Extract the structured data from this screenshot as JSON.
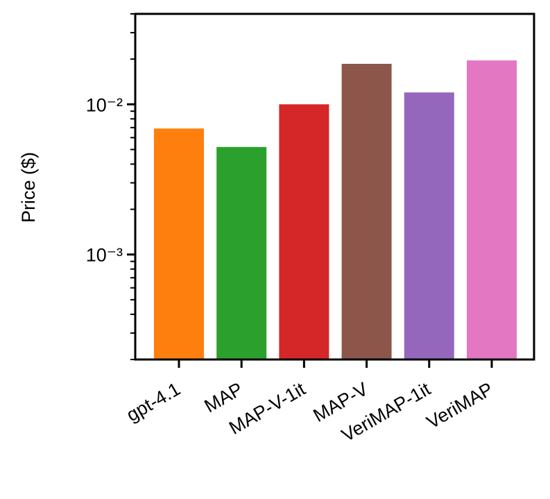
{
  "chart_data": {
    "type": "bar",
    "y_label": "Price ($)",
    "y_scale": "log",
    "categories": [
      "gpt-4.1",
      "MAP",
      "MAP-V-1it",
      "MAP-V",
      "VeriMAP-1it",
      "VeriMAP"
    ],
    "values": [
      0.0069,
      0.0052,
      0.01,
      0.0186,
      0.012,
      0.0196
    ],
    "colors": [
      "#ff7f0e",
      "#2ca02c",
      "#d62728",
      "#8c564b",
      "#9467bd",
      "#e377c2"
    ],
    "ylim": [
      0.0002,
      0.04
    ],
    "yticks": [
      {
        "value": 0.001,
        "label": "10⁻³"
      },
      {
        "value": 0.01,
        "label": "10⁻²"
      }
    ],
    "yminorticks": [
      0.0002,
      0.0003,
      0.0004,
      0.0005,
      0.0006,
      0.0007,
      0.0008,
      0.0009,
      0.002,
      0.003,
      0.004,
      0.005,
      0.006,
      0.007,
      0.008,
      0.009,
      0.02,
      0.03,
      0.04
    ]
  }
}
